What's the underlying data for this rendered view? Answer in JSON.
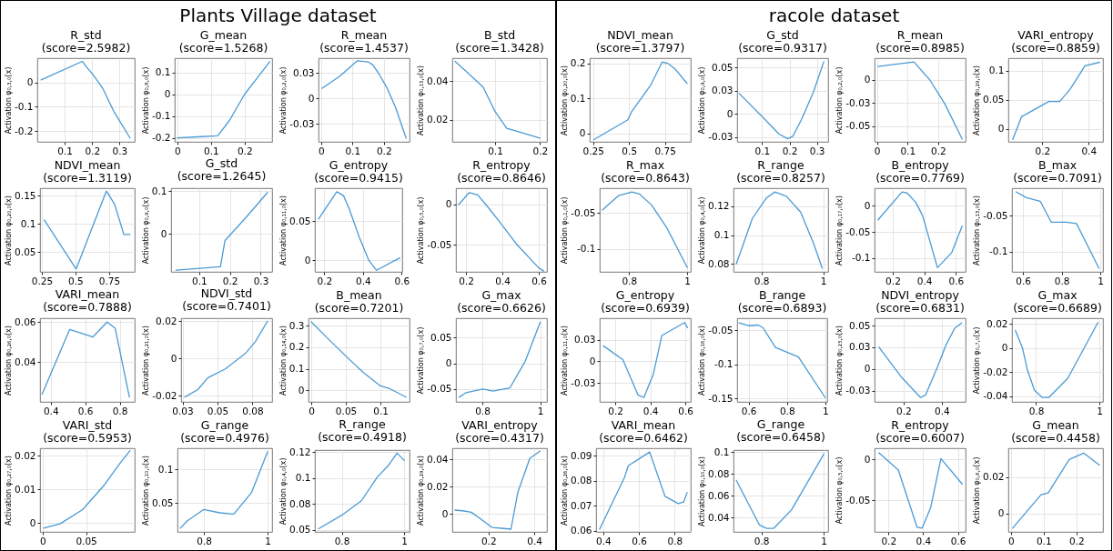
{
  "chart_data": [
    {
      "type": "other",
      "title": "Plants Village dataset"
    },
    {
      "type": "line",
      "title": "R_std",
      "subtitle": "(score=2.5982)",
      "ylabel": "Activation φ₀,₃,₀(x)",
      "color": "#4a9ad4",
      "grid": true,
      "x": [
        0.014,
        0.164,
        0.179,
        0.202,
        0.239,
        0.279,
        0.338
      ],
      "values": [
        0.011,
        0.087,
        0.064,
        0.034,
        -0.025,
        -0.119,
        -0.228
      ],
      "xlim": [
        0,
        0.355
      ],
      "ylim": [
        -0.244,
        0.1
      ],
      "xticks": [
        0.1,
        0.2,
        0.3
      ],
      "yticks": [
        -0.2,
        -0.1,
        0
      ]
    },
    {
      "type": "line",
      "title": "G_mean",
      "subtitle": "(score=1.5268)",
      "ylabel": "Activation φ₀,₈,₀(x)",
      "color": "#4a9ad4",
      "grid": true,
      "x": [
        0,
        0.06,
        0.12,
        0.155,
        0.2,
        0.24,
        0.275
      ],
      "values": [
        -0.2,
        -0.195,
        -0.19,
        -0.12,
        0,
        0.08,
        0.15
      ],
      "xlim": [
        -0.008,
        0.282
      ],
      "ylim": [
        -0.218,
        0.166
      ],
      "xticks": [
        0,
        0.1,
        0.2
      ],
      "yticks": [
        -0.2,
        -0.1,
        0,
        0.1
      ]
    },
    {
      "type": "line",
      "title": "R_mean",
      "subtitle": "(score=1.4537)",
      "ylabel": "Activation φ₀,₂,₀(x)",
      "color": "#4a9ad4",
      "grid": true,
      "x": [
        0.003,
        0.06,
        0.115,
        0.15,
        0.165,
        0.185,
        0.211,
        0.238,
        0.271
      ],
      "values": [
        0.01,
        0.022,
        0.037,
        0.036,
        0.033,
        0.024,
        0.01,
        -0.009,
        -0.039
      ],
      "xlim": [
        -0.008,
        0.282
      ],
      "ylim": [
        -0.0425,
        0.0396
      ],
      "xticks": [
        0,
        0.1,
        0.2
      ],
      "yticks": [
        {
          "value": -0.025,
          "label": "-0.03"
        },
        0,
        {
          "value": 0.025,
          "label": "0.03"
        }
      ]
    },
    {
      "type": "line",
      "title": "B_std",
      "subtitle": "(score=1.3428)",
      "ylabel": "Activation φ₀,₁₃,₀(x)",
      "color": "#4a9ad4",
      "grid": true,
      "x": [
        0.011,
        0.0734,
        0.1,
        0.126,
        0.2
      ],
      "values": [
        0.0502,
        0.0369,
        0.0243,
        0.0157,
        0.0106
      ],
      "xlim": [
        0.0047,
        0.2156
      ],
      "ylim": [
        0.0087,
        0.0518
      ],
      "xticks": [
        0.1,
        0.2
      ],
      "yticks": [
        0.02,
        0.04
      ]
    },
    {
      "type": "line",
      "title": "NDVI_mean",
      "subtitle": "(score=1.3119)",
      "ylabel": "Activation φ₀,₂₀,₀(x)",
      "color": "#4a9ad4",
      "grid": true,
      "x": [
        0.268,
        0.505,
        0.73,
        0.79,
        0.86,
        0.905
      ],
      "values": [
        0.107,
        0.02,
        0.158,
        0.135,
        0.081,
        0.081
      ],
      "xlim": [
        0.237,
        0.94
      ],
      "ylim": [
        0.015,
        0.163
      ],
      "xticks": [
        0.25,
        0.5,
        0.75
      ],
      "yticks": [
        0.05,
        0.1,
        0.15
      ]
    },
    {
      "type": "line",
      "title": "G_std",
      "subtitle": "(score=1.2645)",
      "ylabel": "Activation φ₀,₉,₀(x)",
      "color": "#4a9ad4",
      "grid": true,
      "x": [
        0.025,
        0.169,
        0.184,
        0.25,
        0.322
      ],
      "values": [
        -0.084,
        -0.076,
        -0.015,
        0.037,
        0.097
      ],
      "xlim": [
        0.009,
        0.337
      ],
      "ylim": [
        -0.088,
        0.107
      ],
      "xticks": [
        0.1,
        0.2,
        0.3
      ],
      "yticks": [
        0,
        0.1
      ]
    },
    {
      "type": "line",
      "title": "G_entropy",
      "subtitle": "(score=0.9415)",
      "ylabel": "Activation φ₀,₁₁,₀(x)",
      "color": "#4a9ad4",
      "grid": true,
      "x": [
        0.17,
        0.264,
        0.299,
        0.33,
        0.38,
        0.43,
        0.47,
        0.59
      ],
      "values": [
        0.053,
        0.088,
        0.083,
        0.065,
        0.03,
        0,
        -0.013,
        0.003
      ],
      "xlim": [
        0.151,
        0.603
      ],
      "ylim": [
        -0.015,
        0.0925
      ],
      "xticks": [
        0.2,
        0.4,
        0.6
      ],
      "yticks": [
        0,
        0.05
      ]
    },
    {
      "type": "line",
      "title": "R_entropy",
      "subtitle": "(score=0.8646)",
      "ylabel": "Activation φ₀,₅,₀(x)",
      "color": "#4a9ad4",
      "grid": true,
      "x": [
        0.16,
        0.218,
        0.264,
        0.31,
        0.4,
        0.48,
        0.6,
        0.627
      ],
      "values": [
        0,
        0.015,
        0.012,
        0,
        -0.026,
        -0.05,
        -0.079,
        -0.083
      ],
      "xlim": [
        0.145,
        0.645
      ],
      "ylim": [
        -0.084,
        0.0204
      ],
      "xticks": [
        0.2,
        0.4,
        0.6
      ],
      "yticks": [
        -0.05,
        0
      ]
    },
    {
      "type": "line",
      "title": "VARI_mean",
      "subtitle": "(score=0.7888)",
      "ylabel": "Activation φ₀,₂₆,₀(x)",
      "color": "#4a9ad4",
      "grid": true,
      "x": [
        0.35,
        0.51,
        0.645,
        0.727,
        0.774,
        0.856
      ],
      "values": [
        0.024,
        0.0563,
        0.0526,
        0.06,
        0.0569,
        0.0226
      ],
      "xlim": [
        0.338,
        0.887
      ],
      "ylim": [
        0.0202,
        0.0619
      ],
      "xticks": [
        0.4,
        0.6,
        0.8
      ],
      "yticks": [
        0.04,
        0.06
      ]
    },
    {
      "type": "line",
      "title": "NDVI_std",
      "subtitle": "(score=0.7401)",
      "ylabel": "Activation φ₀,₂₁,₀(x)",
      "color": "#4a9ad4",
      "grid": true,
      "x": [
        0.0267,
        0.0359,
        0.0432,
        0.0553,
        0.0699,
        0.0772,
        0.0857
      ],
      "values": [
        -0.0208,
        -0.0168,
        -0.0104,
        -0.0058,
        0.0026,
        0.0092,
        0.02
      ],
      "xlim": [
        0.024,
        0.089
      ],
      "ylim": [
        -0.0234,
        0.0216
      ],
      "xticks": [
        {
          "value": 0.025,
          "label": "0.03"
        },
        0.05,
        {
          "value": 0.075,
          "label": "0.08"
        }
      ],
      "yticks": [
        -0.02,
        0,
        0.02
      ]
    },
    {
      "type": "line",
      "title": "B_mean",
      "subtitle": "(score=0.7201)",
      "ylabel": "Activation φ₀,₁₄,₀(x)",
      "color": "#4a9ad4",
      "grid": true,
      "x": [
        0,
        0.024,
        0.05,
        0.075,
        0.1,
        0.114,
        0.137
      ],
      "values": [
        0.317,
        0.24,
        0.159,
        0.084,
        0.021,
        0.007,
        -0.031
      ],
      "xlim": [
        -0.004,
        0.142
      ],
      "ylim": [
        -0.053,
        0.334
      ],
      "xticks": [
        0,
        0.05,
        0.1
      ],
      "yticks": [
        0,
        0.1,
        0.2,
        0.3
      ]
    },
    {
      "type": "line",
      "title": "G_max",
      "subtitle": "(score=0.6626)",
      "ylabel": "Activation φ₀,₇,₀(x)",
      "color": "#4a9ad4",
      "grid": true,
      "x": [
        0.72,
        0.744,
        0.802,
        0.837,
        0.895,
        0.948,
        1.0
      ],
      "values": [
        -0.066,
        -0.057,
        -0.05,
        -0.054,
        -0.048,
        0.004,
        0.08
      ],
      "xlim": [
        0.709,
        1.023
      ],
      "ylim": [
        -0.075,
        0.0877
      ],
      "xticks": [
        0.8,
        1
      ],
      "yticks": [
        -0.05,
        0,
        0.05
      ]
    },
    {
      "type": "line",
      "title": "VARI_std",
      "subtitle": "(score=0.5953)",
      "ylabel": "Activation φ₀,₂₇,₀(x)",
      "color": "#4a9ad4",
      "grid": true,
      "x": [
        0.001,
        0.02,
        0.046,
        0.07,
        0.0886,
        0.1006
      ],
      "values": [
        -0.0015,
        -0.0002,
        0.004,
        0.011,
        0.0176,
        0.0215
      ],
      "xlim": [
        -0.003,
        0.106
      ],
      "ylim": [
        -0.0026,
        0.0222
      ],
      "xticks": [
        0,
        0.05
      ],
      "yticks": [
        0,
        0.01,
        0.02
      ]
    },
    {
      "type": "line",
      "title": "G_range",
      "subtitle": "(score=0.4976)",
      "ylabel": "Activation φ₀,₁₀,₀(x)",
      "color": "#4a9ad4",
      "grid": true,
      "x": [
        0.726,
        0.748,
        0.8,
        0.85,
        0.894,
        0.95,
        1.0
      ],
      "values": [
        0.012,
        0.023,
        0.04,
        0.035,
        0.033,
        0.066,
        0.127
      ],
      "xlim": [
        0.717,
        1.014
      ],
      "ylim": [
        0.0063,
        0.132
      ],
      "xticks": [
        0.8,
        1
      ],
      "yticks": [
        0.05,
        0.1
      ]
    },
    {
      "type": "line",
      "title": "R_range",
      "subtitle": "(score=0.4918)",
      "ylabel": "Activation φ₀,₄,₀(x)",
      "color": "#4a9ad4",
      "grid": true,
      "x": [
        0.726,
        0.8,
        0.863,
        0.914,
        0.949,
        0.977,
        1.0
      ],
      "values": [
        0.051,
        0.064,
        0.078,
        0.101,
        0.112,
        0.124,
        0.117
      ],
      "xlim": [
        0.714,
        1.017
      ],
      "ylim": [
        0.0479,
        0.127
      ],
      "xticks": [
        0.8,
        1
      ],
      "yticks": [
        0.05,
        {
          "value": 0.075,
          "label": "0.08"
        },
        0.1,
        {
          "value": 0.125,
          "label": "0.12"
        }
      ]
    },
    {
      "type": "line",
      "title": "VARI_entropy",
      "subtitle": "(score=0.4317)",
      "ylabel": "Activation φ₀,₂₉,₀(x)",
      "color": "#4a9ad4",
      "grid": true,
      "x": [
        0.054,
        0.087,
        0.125,
        0.17,
        0.215,
        0.268,
        0.298,
        0.328,
        0.38,
        0.425
      ],
      "values": [
        0.003,
        0.0025,
        0.0014,
        -0.004,
        -0.0097,
        -0.0105,
        -0.011,
        0.016,
        0.0408,
        0.0463
      ],
      "xlim": [
        0.042,
        0.455
      ],
      "ylim": [
        -0.013,
        0.0483
      ],
      "xticks": [
        0.2,
        0.4
      ],
      "yticks": [
        0,
        0.02,
        0.04
      ]
    },
    {
      "type": "other",
      "title": "racole dataset"
    },
    {
      "type": "line",
      "title": "NDVI_mean",
      "subtitle": "(score=1.3797)",
      "ylabel": "Activation φ₀,₂₀,₀(x)",
      "color": "#4a9ad4",
      "grid": true,
      "x": [
        0.253,
        0.492,
        0.519,
        0.652,
        0.731,
        0.771,
        0.824,
        0.904
      ],
      "values": [
        -0.018,
        0.039,
        0.063,
        0.139,
        0.204,
        0.2,
        0.183,
        0.143
      ],
      "xlim": [
        0.226,
        0.93
      ],
      "ylim": [
        -0.024,
        0.215
      ],
      "xticks": [
        0.25,
        0.5,
        0.75
      ],
      "yticks": [
        0,
        0.1,
        0.2
      ]
    },
    {
      "type": "line",
      "title": "G_std",
      "subtitle": "(score=0.9317)",
      "ylabel": "Activation φ₀,₉,₀(x)",
      "color": "#4a9ad4",
      "grid": true,
      "x": [
        0.016,
        0.11,
        0.162,
        0.194,
        0.213,
        0.244,
        0.287,
        0.325
      ],
      "values": [
        0.022,
        -0.006,
        -0.022,
        -0.027,
        -0.024,
        -0.006,
        0.023,
        0.056
      ],
      "xlim": [
        0.009,
        0.341
      ],
      "ylim": [
        -0.0303,
        0.0598
      ],
      "xticks": [
        0.1,
        0.2,
        0.3
      ],
      "yticks": [
        {
          "value": -0.025,
          "label": "-0.03"
        },
        0,
        {
          "value": 0.025,
          "label": "0.03"
        },
        0.05
      ]
    },
    {
      "type": "line",
      "title": "R_mean",
      "subtitle": "(score=0.8985)",
      "ylabel": "Activation φ₀,₂,₀(x)",
      "color": "#4a9ad4",
      "grid": true,
      "x": [
        0.003,
        0.121,
        0.172,
        0.222,
        0.279
      ],
      "values": [
        0.014,
        0.019,
        0,
        -0.026,
        -0.064
      ],
      "xlim": [
        -0.008,
        0.29
      ],
      "ylim": [
        -0.067,
        0.023
      ],
      "xticks": [
        0,
        0.1,
        0.2
      ],
      "yticks": [
        -0.05,
        {
          "value": -0.025,
          "label": "-0.03"
        },
        0
      ]
    },
    {
      "type": "line",
      "title": "VARI_entropy",
      "subtitle": "(score=0.8859)",
      "ylabel": "Activation φ₀,₂₉,₀(x)",
      "color": "#4a9ad4",
      "grid": true,
      "x": [
        0.072,
        0.11,
        0.228,
        0.275,
        0.322,
        0.384,
        0.447
      ],
      "values": [
        -0.018,
        0.021,
        0.047,
        0.047,
        0.069,
        0.108,
        0.114
      ],
      "xlim": [
        0.053,
        0.462
      ],
      "ylim": [
        -0.022,
        0.121
      ],
      "xticks": [
        0.2,
        0.4
      ],
      "yticks": [
        0,
        0.05,
        0.1
      ]
    },
    {
      "type": "line",
      "title": "R_max",
      "subtitle": "(score=0.8643)",
      "ylabel": "Activation φ₀,₁,₀(x)",
      "color": "#4a9ad4",
      "grid": true,
      "x": [
        0.708,
        0.764,
        0.81,
        0.836,
        0.877,
        0.93,
        1.0
      ],
      "values": [
        -0.046,
        -0.026,
        -0.021,
        -0.024,
        -0.039,
        -0.071,
        -0.126
      ],
      "xlim": [
        0.699,
        1.012
      ],
      "ylim": [
        -0.132,
        -0.0158
      ],
      "xticks": [
        0.8,
        1
      ],
      "yticks": [
        -0.1,
        -0.05
      ]
    },
    {
      "type": "line",
      "title": "R_range",
      "subtitle": "(score=0.8257)",
      "ylabel": "Activation φ₀,₄,₀(x)",
      "color": "#4a9ad4",
      "grid": true,
      "x": [
        0.719,
        0.771,
        0.817,
        0.844,
        0.881,
        0.927,
        0.968,
        0.997
      ],
      "values": [
        0.08,
        0.1116,
        0.126,
        0.13,
        0.127,
        0.116,
        0.0947,
        0.077
      ],
      "xlim": [
        0.71,
        1.016
      ],
      "ylim": [
        0.0745,
        0.1326
      ],
      "xticks": [
        0.8,
        1
      ],
      "yticks": [
        0.08,
        0.1,
        0.12
      ]
    },
    {
      "type": "line",
      "title": "B_entropy",
      "subtitle": "(score=0.7769)",
      "ylabel": "Activation φ₀,₁₇,₀(x)",
      "color": "#4a9ad4",
      "grid": true,
      "x": [
        0.107,
        0.259,
        0.291,
        0.346,
        0.389,
        0.483,
        0.574,
        0.639
      ],
      "values": [
        -0.027,
        0.026,
        0.024,
        0.006,
        -0.019,
        -0.118,
        -0.089,
        -0.039
      ],
      "xlim": [
        0.085,
        0.661
      ],
      "ylim": [
        -0.126,
        0.033
      ],
      "xticks": [
        0.2,
        0.4,
        0.6
      ],
      "yticks": [
        -0.1,
        -0.05,
        0
      ]
    },
    {
      "type": "line",
      "title": "B_max",
      "subtitle": "(score=0.7091)",
      "ylabel": "Activation φ₀,₁₃,₀(x)",
      "color": "#4a9ad4",
      "grid": true,
      "x": [
        0.564,
        0.618,
        0.689,
        0.746,
        0.823,
        0.877,
        0.993
      ],
      "values": [
        -0.017,
        -0.025,
        -0.03,
        -0.059,
        -0.059,
        -0.061,
        -0.123
      ],
      "xlim": [
        0.543,
        1.014
      ],
      "ylim": [
        -0.128,
        -0.012
      ],
      "xticks": [
        0.6,
        0.8,
        1
      ],
      "yticks": [
        -0.1,
        -0.05
      ]
    },
    {
      "type": "line",
      "title": "G_entropy",
      "subtitle": "(score=0.6939)",
      "ylabel": "Activation φ₀,₁₁,₀(x)",
      "color": "#4a9ad4",
      "grid": true,
      "x": [
        0.132,
        0.243,
        0.33,
        0.363,
        0.417,
        0.466,
        0.596,
        0.612
      ],
      "values": [
        0.018,
        0.002,
        -0.039,
        -0.042,
        -0.015,
        0.03,
        0.045,
        0.039
      ],
      "xlim": [
        0.111,
        0.631
      ],
      "ylim": [
        -0.047,
        0.05
      ],
      "xticks": [
        0.2,
        0.4,
        0.6
      ],
      "yticks": [
        {
          "value": -0.025,
          "label": "-0.03"
        },
        0,
        {
          "value": 0.025,
          "label": "0.03"
        }
      ]
    },
    {
      "type": "line",
      "title": "B_range",
      "subtitle": "(score=0.6893)",
      "ylabel": "Activation φ₀,₁₆,₀(x)",
      "color": "#4a9ad4",
      "grid": true,
      "x": [
        0.55,
        0.6,
        0.65,
        0.675,
        0.74,
        0.86,
        1.0
      ],
      "values": [
        -0.039,
        -0.043,
        -0.042,
        -0.046,
        -0.075,
        -0.089,
        -0.149
      ],
      "xlim": [
        0.54,
        1.01
      ],
      "ylim": [
        -0.155,
        -0.032
      ],
      "xticks": [
        0.6,
        0.8,
        1
      ],
      "yticks": [
        -0.15,
        -0.1,
        -0.05
      ]
    },
    {
      "type": "line",
      "title": "NDVI_entropy",
      "subtitle": "(score=0.6831)",
      "ylabel": "Activation φ₀,₂₃,₀(x)",
      "color": "#4a9ad4",
      "grid": true,
      "x": [
        0.071,
        0.191,
        0.289,
        0.316,
        0.379,
        0.423,
        0.468,
        0.504
      ],
      "values": [
        0.025,
        -0.01,
        -0.033,
        -0.03,
        0.003,
        0.028,
        0.047,
        0.053
      ],
      "xlim": [
        0.048,
        0.525
      ],
      "ylim": [
        -0.038,
        0.0585
      ],
      "xticks": [
        0.2,
        0.4
      ],
      "yticks": [
        {
          "value": -0.025,
          "label": "-0.03"
        },
        0,
        {
          "value": 0.025,
          "label": "0.03"
        },
        0.05
      ]
    },
    {
      "type": "line",
      "title": "G_max",
      "subtitle": "(score=0.6689)",
      "ylabel": "Activation φ₀,₇,₀(x)",
      "color": "#4a9ad4",
      "grid": true,
      "x": [
        0.735,
        0.757,
        0.773,
        0.795,
        0.82,
        0.84,
        0.9,
        0.995
      ],
      "values": [
        0.0145,
        0,
        -0.0185,
        -0.035,
        -0.041,
        -0.041,
        -0.025,
        0.021
      ],
      "xlim": [
        0.724,
        1.011
      ],
      "ylim": [
        -0.0446,
        0.0246
      ],
      "xticks": [
        0.8,
        1
      ],
      "yticks": [
        -0.04,
        -0.02,
        0,
        0.02
      ]
    },
    {
      "type": "line",
      "title": "VARI_mean",
      "subtitle": "(score=0.6462)",
      "ylabel": "Activation φ₀,₂₆,₀(x)",
      "color": "#4a9ad4",
      "grid": true,
      "x": [
        0.38,
        0.52,
        0.54,
        0.66,
        0.746,
        0.82,
        0.85,
        0.87
      ],
      "values": [
        0.0607,
        0.0815,
        0.086,
        0.0915,
        0.0738,
        0.0709,
        0.0715,
        0.0753
      ],
      "xlim": [
        0.36,
        0.89
      ],
      "ylim": [
        0.0596,
        0.093
      ],
      "xticks": [
        0.4,
        0.6,
        0.8
      ],
      "yticks": [
        0.06,
        0.07,
        0.08,
        0.09
      ]
    },
    {
      "type": "line",
      "title": "G_range",
      "subtitle": "(score=0.6458)",
      "ylabel": "Activation φ₀,₁₀,₀(x)",
      "color": "#4a9ad4",
      "grid": true,
      "x": [
        0.72,
        0.794,
        0.817,
        0.84,
        0.897,
        1.0
      ],
      "values": [
        0.074,
        0.033,
        0.03,
        0.03,
        0.047,
        0.098
      ],
      "xlim": [
        0.711,
        1.014
      ],
      "ylim": [
        0.0267,
        0.1017
      ],
      "xticks": [
        0.8,
        1
      ],
      "yticks": [
        0.04,
        0.06,
        0.08,
        0.1
      ]
    },
    {
      "type": "line",
      "title": "R_entropy",
      "subtitle": "(score=0.6007)",
      "ylabel": "Activation φ₀,₅,₀(x)",
      "color": "#4a9ad4",
      "grid": true,
      "x": [
        0.145,
        0.257,
        0.365,
        0.394,
        0.443,
        0.502,
        0.624
      ],
      "values": [
        0.008,
        -0.013,
        -0.083,
        -0.084,
        -0.059,
        0.001,
        -0.03
      ],
      "xlim": [
        0.12,
        0.644
      ],
      "ylim": [
        -0.0886,
        0.0136
      ],
      "xticks": [
        0.2,
        0.4,
        0.6
      ],
      "yticks": [
        -0.05,
        0
      ]
    },
    {
      "type": "line",
      "title": "G_mean",
      "subtitle": "(score=0.4458)",
      "ylabel": "Activation φ₀,₆,₀(x)",
      "color": "#4a9ad4",
      "grid": true,
      "x": [
        0.0054,
        0.092,
        0.114,
        0.178,
        0.222,
        0.27
      ],
      "values": [
        -0.0082,
        0.0103,
        0.0113,
        0.0299,
        0.0334,
        0.0268
      ],
      "xlim": [
        -0.0076,
        0.281
      ],
      "ylim": [
        -0.0103,
        0.0361
      ],
      "xticks": [
        0,
        0.1,
        0.2
      ],
      "yticks": [
        0,
        0.02
      ]
    }
  ]
}
